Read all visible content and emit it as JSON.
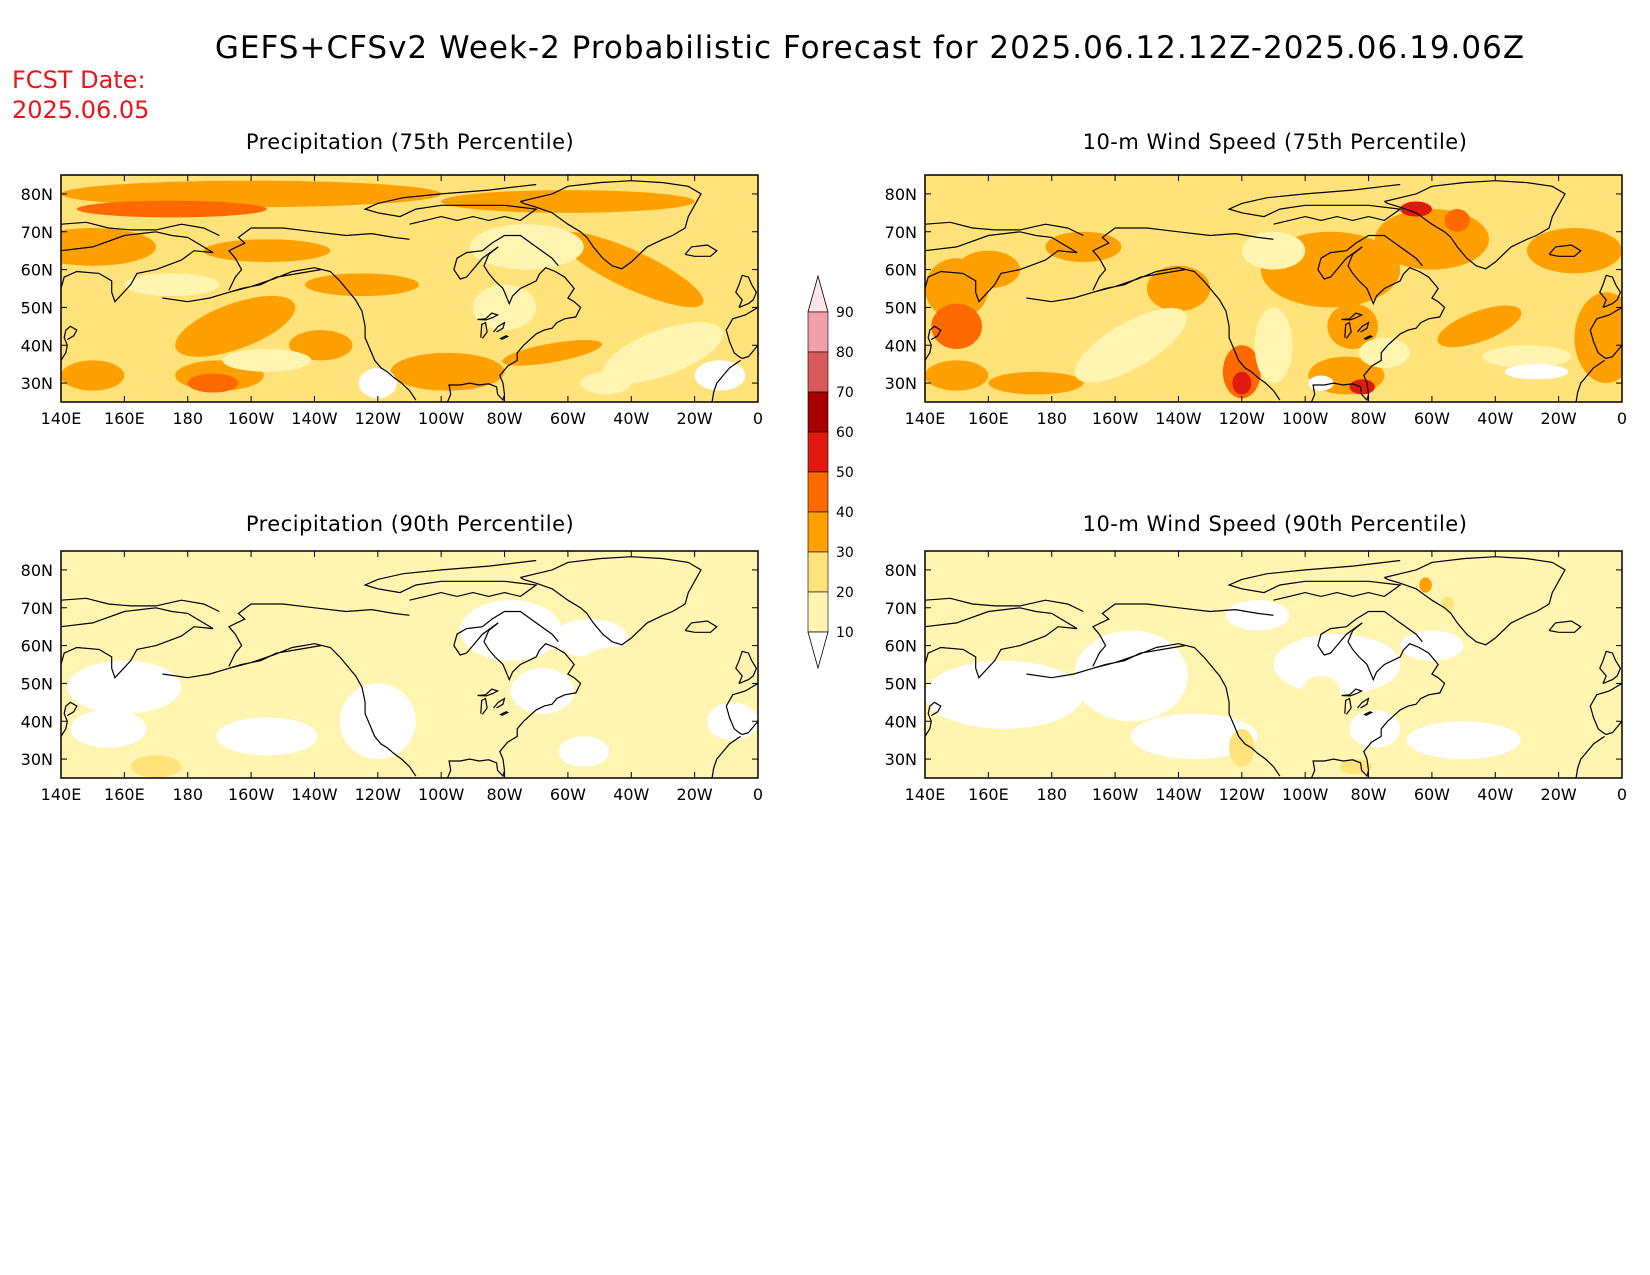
{
  "header": {
    "title": "GEFS+CFSv2 Week-2 Probabilistic Forecast for 2025.06.12.12Z-2025.06.19.06Z",
    "fcst_label": "FCST Date:",
    "fcst_date": "2025.06.05"
  },
  "panels": [
    {
      "title": "Precipitation (75th Percentile)",
      "field": "precip75"
    },
    {
      "title": "10-m Wind Speed (75th Percentile)",
      "field": "wind75"
    },
    {
      "title": "Precipitation (90th Percentile)",
      "field": "precip90"
    },
    {
      "title": "10-m Wind Speed (90th Percentile)",
      "field": "wind90"
    }
  ],
  "axes": {
    "lon_ticks": [
      "140E",
      "160E",
      "180",
      "160W",
      "140W",
      "120W",
      "100W",
      "80W",
      "60W",
      "40W",
      "20W",
      "0"
    ],
    "lat_ticks": [
      "80N",
      "70N",
      "60N",
      "50N",
      "40N",
      "30N"
    ],
    "lon_range": [
      140,
      360
    ],
    "lat_range": [
      25,
      85
    ]
  },
  "colorbar": {
    "levels": [
      "10",
      "20",
      "30",
      "40",
      "50",
      "60",
      "70",
      "80",
      "90"
    ],
    "colors": [
      "#fff4b0",
      "#ffe27a",
      "#ffa000",
      "#ff6a00",
      "#e01a10",
      "#a80000",
      "#d95a5a",
      "#f2a0a8",
      "#fde4e8"
    ],
    "units": "%"
  },
  "palette": {
    "below10": "#ffffff",
    "c10_20": "#fff4b0",
    "c20_30": "#ffe27a",
    "c30_40": "#ffa000",
    "c40_50": "#ff6a00",
    "c50_60": "#e01a10",
    "c60_70": "#a80000"
  }
}
